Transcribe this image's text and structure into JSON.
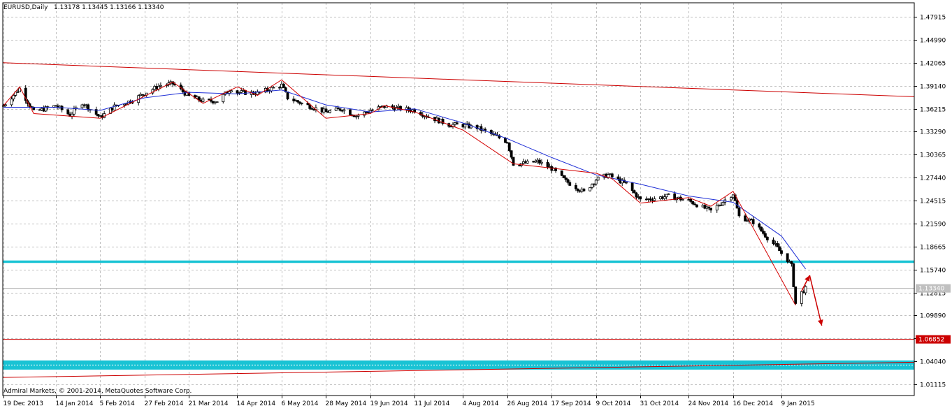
{
  "header": {
    "symbol": "EURUSD,Daily",
    "ohlc": "1.13178 1.13445 1.13166 1.13340"
  },
  "footer": {
    "copyright": "Admiral Markets, © 2001-2014, MetaQuotes Software Corp."
  },
  "chart_data": {
    "type": "candlestick",
    "title": "EURUSD,Daily",
    "ylim": [
      0.997,
      1.497
    ],
    "grid": true,
    "y_ticks": [
      "1.47915",
      "1.44990",
      "1.42065",
      "1.39140",
      "1.36215",
      "1.33290",
      "1.30365",
      "1.27440",
      "1.24515",
      "1.21590",
      "1.18665",
      "1.15740",
      "1.12815",
      "1.09890",
      "1.06965",
      "1.04040",
      "1.01115"
    ],
    "x_ticks": [
      "19 Dec 2013",
      "14 Jan 2014",
      "5 Feb 2014",
      "27 Feb 2014",
      "21 Mar 2014",
      "14 Apr 2014",
      "6 May 2014",
      "28 May 2014",
      "19 Jun 2014",
      "11 Jul 2014",
      "4 Aug 2014",
      "26 Aug 2014",
      "17 Sep 2014",
      "9 Oct 2014",
      "31 Oct 2014",
      "24 Nov 2014",
      "16 Dec 2014",
      "9 Jan 2015"
    ],
    "current_price": "1.13340",
    "level_label": "1.06852",
    "levels": [
      {
        "name": "resistance-zone",
        "value": 1.1674,
        "color": "#19c3d4"
      },
      {
        "name": "target-level",
        "value": 1.06852,
        "color": "#cc0000"
      },
      {
        "name": "support-zone-top",
        "value": 1.0417,
        "color": "#19c3d4"
      },
      {
        "name": "support-zone-bottom",
        "value": 1.03,
        "color": "#19c3d4"
      }
    ],
    "trendlines": [
      {
        "name": "upper-trendline",
        "from": {
          "x": "19 Dec 2013",
          "y": 1.4207
        },
        "to": {
          "x": "19 Jan 2015",
          "y": 1.3828
        },
        "color": "#cc0000"
      },
      {
        "name": "lower-trendline",
        "from": {
          "x": "19 Dec 2013",
          "y": 1.02
        },
        "to": {
          "x": "19 Jan 2015",
          "y": 1.037
        },
        "color": "#cc0000"
      }
    ],
    "price_path": [
      [
        "19 Dec 2013",
        1.366
      ],
      [
        "27 Dec 2013",
        1.388
      ],
      [
        "3 Jan 2014",
        1.358
      ],
      [
        "14 Jan 2014",
        1.366
      ],
      [
        "21 Jan 2014",
        1.354
      ],
      [
        "27 Jan 2014",
        1.37
      ],
      [
        "5 Feb 2014",
        1.351
      ],
      [
        "12 Feb 2014",
        1.365
      ],
      [
        "21 Feb 2014",
        1.373
      ],
      [
        "27 Feb 2014",
        1.382
      ],
      [
        "7 Mar 2014",
        1.392
      ],
      [
        "13 Mar 2014",
        1.394
      ],
      [
        "21 Mar 2014",
        1.378
      ],
      [
        "28 Mar 2014",
        1.372
      ],
      [
        "4 Apr 2014",
        1.372
      ],
      [
        "11 Apr 2014",
        1.388
      ],
      [
        "14 Apr 2014",
        1.383
      ],
      [
        "24 Apr 2014",
        1.382
      ],
      [
        "6 May 2014",
        1.392
      ],
      [
        "9 May 2014",
        1.376
      ],
      [
        "16 May 2014",
        1.369
      ],
      [
        "28 May 2014",
        1.358
      ],
      [
        "5 Jun 2014",
        1.362
      ],
      [
        "12 Jun 2014",
        1.353
      ],
      [
        "19 Jun 2014",
        1.36
      ],
      [
        "26 Jun 2014",
        1.365
      ],
      [
        "4 Jul 2014",
        1.362
      ],
      [
        "11 Jul 2014",
        1.36
      ],
      [
        "18 Jul 2014",
        1.352
      ],
      [
        "28 Jul 2014",
        1.342
      ],
      [
        "4 Aug 2014",
        1.341
      ],
      [
        "11 Aug 2014",
        1.338
      ],
      [
        "18 Aug 2014",
        1.33
      ],
      [
        "26 Aug 2014",
        1.32
      ],
      [
        "29 Aug 2014",
        1.292
      ],
      [
        "5 Sep 2014",
        1.293
      ],
      [
        "10 Sep 2014",
        1.295
      ],
      [
        "17 Sep 2014",
        1.286
      ],
      [
        "24 Sep 2014",
        1.27
      ],
      [
        "3 Oct 2014",
        1.256
      ],
      [
        "9 Oct 2014",
        1.272
      ],
      [
        "15 Oct 2014",
        1.278
      ],
      [
        "24 Oct 2014",
        1.266
      ],
      [
        "31 Oct 2014",
        1.246
      ],
      [
        "7 Nov 2014",
        1.248
      ],
      [
        "14 Nov 2014",
        1.251
      ],
      [
        "24 Nov 2014",
        1.245
      ],
      [
        "28 Nov 2014",
        1.24
      ],
      [
        "5 Dec 2014",
        1.232
      ],
      [
        "16 Dec 2014",
        1.254
      ],
      [
        "19 Dec 2014",
        1.225
      ],
      [
        "26 Dec 2014",
        1.218
      ],
      [
        "2 Jan 2015",
        1.198
      ],
      [
        "6 Jan 2015",
        1.188
      ],
      [
        "9 Jan 2015",
        1.178
      ],
      [
        "12 Jan 2015",
        1.17
      ],
      [
        "14 Jan 2015",
        1.162
      ],
      [
        "16 Jan 2015",
        1.114
      ],
      [
        "19 Jan 2015",
        1.128
      ],
      [
        "21 Jan 2015",
        1.133
      ]
    ],
    "moving_average": [
      [
        "19 Dec 2013",
        1.364
      ],
      [
        "14 Jan 2014",
        1.364
      ],
      [
        "5 Feb 2014",
        1.36
      ],
      [
        "27 Feb 2014",
        1.376
      ],
      [
        "21 Mar 2014",
        1.383
      ],
      [
        "14 Apr 2014",
        1.381
      ],
      [
        "6 May 2014",
        1.386
      ],
      [
        "28 May 2014",
        1.367
      ],
      [
        "19 Jun 2014",
        1.358
      ],
      [
        "11 Jul 2014",
        1.362
      ],
      [
        "4 Aug 2014",
        1.344
      ],
      [
        "26 Aug 2014",
        1.324
      ],
      [
        "17 Sep 2014",
        1.3
      ],
      [
        "9 Oct 2014",
        1.278
      ],
      [
        "31 Oct 2014",
        1.266
      ],
      [
        "24 Nov 2014",
        1.251
      ],
      [
        "16 Dec 2014",
        1.243
      ],
      [
        "9 Jan 2015",
        1.2
      ],
      [
        "21 Jan 2015",
        1.158
      ]
    ],
    "zigzag": [
      [
        "19 Dec 2013",
        1.366
      ],
      [
        "27 Dec 2013",
        1.39
      ],
      [
        "3 Jan 2014",
        1.356
      ],
      [
        "5 Feb 2014",
        1.35
      ],
      [
        "13 Mar 2014",
        1.396
      ],
      [
        "28 Mar 2014",
        1.369
      ],
      [
        "14 Apr 2014",
        1.39
      ],
      [
        "24 Apr 2014",
        1.379
      ],
      [
        "6 May 2014",
        1.399
      ],
      [
        "28 May 2014",
        1.35
      ],
      [
        "19 Jun 2014",
        1.356
      ],
      [
        "26 Jun 2014",
        1.366
      ],
      [
        "11 Jul 2014",
        1.358
      ],
      [
        "4 Aug 2014",
        1.335
      ],
      [
        "29 Aug 2014",
        1.292
      ],
      [
        "9 Oct 2014",
        1.28
      ],
      [
        "17 Oct 2014",
        1.273
      ],
      [
        "31 Oct 2014",
        1.242
      ],
      [
        "24 Nov 2014",
        1.249
      ],
      [
        "5 Dec 2014",
        1.238
      ],
      [
        "16 Dec 2014",
        1.257
      ],
      [
        "16 Jan 2015",
        1.112
      ]
    ],
    "projection_arrows": [
      {
        "name": "up-arrow",
        "from": {
          "x": "19 Jan 2015",
          "y": 1.13
        },
        "to": {
          "x": "23 Jan 2015",
          "y": 1.15
        },
        "color": "#cc0000"
      },
      {
        "name": "down-arrow",
        "from": {
          "x": "23 Jan 2015",
          "y": 1.15
        },
        "to": {
          "x": "29 Jan 2015",
          "y": 1.086
        },
        "color": "#cc0000"
      }
    ]
  }
}
